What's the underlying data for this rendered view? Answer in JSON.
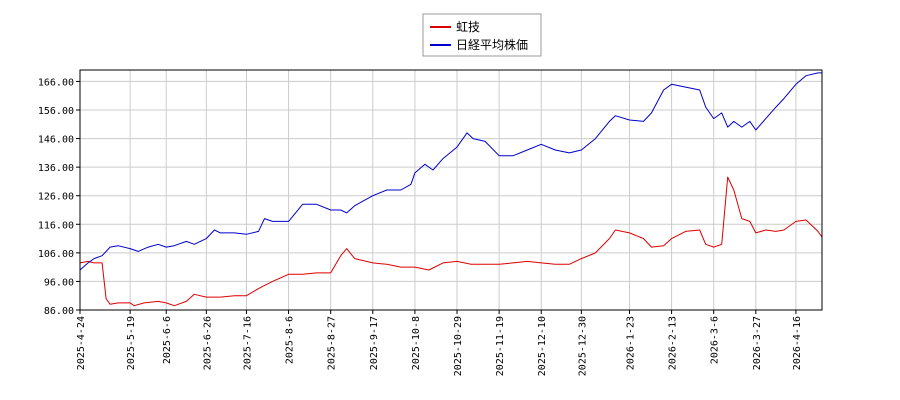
{
  "chart_data": {
    "type": "line",
    "title": "",
    "xlabel": "",
    "ylabel": "",
    "ylim": [
      86,
      170
    ],
    "yticks": [
      86,
      96,
      106,
      116,
      126,
      136,
      146,
      156,
      166
    ],
    "ytick_labels": [
      "86.00",
      "96.00",
      "106.00",
      "116.00",
      "126.00",
      "136.00",
      "146.00",
      "156.00",
      "166.00"
    ],
    "grid": true,
    "legend_position": "top-center",
    "x_range": [
      "2025-04-24",
      "2026-04-29"
    ],
    "xticks": [
      "2025-4-24",
      "2025-5-19",
      "2025-6-6",
      "2025-6-26",
      "2025-7-16",
      "2025-8-6",
      "2025-8-27",
      "2025-9-17",
      "2025-10-8",
      "2025-10-29",
      "2025-11-19",
      "2025-12-10",
      "2025-12-30",
      "2026-1-23",
      "2026-2-13",
      "2026-3-6",
      "2026-3-27",
      "2026-4-16"
    ],
    "series": [
      {
        "name": "虹技",
        "color": "#dd0000",
        "points": [
          [
            "2025-04-24",
            102.5
          ],
          [
            "2025-04-28",
            103
          ],
          [
            "2025-05-01",
            102.5
          ],
          [
            "2025-05-05",
            102.5
          ],
          [
            "2025-05-07",
            90
          ],
          [
            "2025-05-09",
            88
          ],
          [
            "2025-05-13",
            88.5
          ],
          [
            "2025-05-19",
            88.5
          ],
          [
            "2025-05-21",
            87.5
          ],
          [
            "2025-05-26",
            88.5
          ],
          [
            "2025-06-02",
            89
          ],
          [
            "2025-06-06",
            88.5
          ],
          [
            "2025-06-10",
            87.5
          ],
          [
            "2025-06-16",
            89
          ],
          [
            "2025-06-20",
            91.5
          ],
          [
            "2025-06-26",
            90.5
          ],
          [
            "2025-07-03",
            90.5
          ],
          [
            "2025-07-10",
            91
          ],
          [
            "2025-07-16",
            91
          ],
          [
            "2025-07-22",
            93.5
          ],
          [
            "2025-07-29",
            96
          ],
          [
            "2025-08-06",
            98.5
          ],
          [
            "2025-08-13",
            98.5
          ],
          [
            "2025-08-20",
            99
          ],
          [
            "2025-08-27",
            99
          ],
          [
            "2025-09-01",
            105
          ],
          [
            "2025-09-04",
            107.5
          ],
          [
            "2025-09-08",
            104
          ],
          [
            "2025-09-17",
            102.5
          ],
          [
            "2025-09-24",
            102
          ],
          [
            "2025-10-01",
            101
          ],
          [
            "2025-10-08",
            101
          ],
          [
            "2025-10-15",
            100
          ],
          [
            "2025-10-22",
            102.5
          ],
          [
            "2025-10-29",
            103
          ],
          [
            "2025-11-05",
            102
          ],
          [
            "2025-11-12",
            102
          ],
          [
            "2025-11-19",
            102
          ],
          [
            "2025-11-26",
            102.5
          ],
          [
            "2025-12-03",
            103
          ],
          [
            "2025-12-10",
            102.5
          ],
          [
            "2025-12-17",
            102
          ],
          [
            "2025-12-24",
            102
          ],
          [
            "2025-12-30",
            104
          ],
          [
            "2026-01-06",
            106
          ],
          [
            "2026-01-13",
            111
          ],
          [
            "2026-01-16",
            114
          ],
          [
            "2026-01-23",
            113
          ],
          [
            "2026-01-30",
            111
          ],
          [
            "2026-02-03",
            108
          ],
          [
            "2026-02-09",
            108.5
          ],
          [
            "2026-02-13",
            111
          ],
          [
            "2026-02-20",
            113.5
          ],
          [
            "2026-02-27",
            114
          ],
          [
            "2026-03-02",
            109
          ],
          [
            "2026-03-06",
            108
          ],
          [
            "2026-03-10",
            109
          ],
          [
            "2026-03-13",
            132.5
          ],
          [
            "2026-03-16",
            128
          ],
          [
            "2026-03-20",
            118
          ],
          [
            "2026-03-24",
            117
          ],
          [
            "2026-03-27",
            113
          ],
          [
            "2026-04-01",
            114
          ],
          [
            "2026-04-06",
            113.5
          ],
          [
            "2026-04-10",
            114
          ],
          [
            "2026-04-16",
            117
          ],
          [
            "2026-04-21",
            117.5
          ],
          [
            "2026-04-27",
            113.5
          ],
          [
            "2026-04-29",
            111.5
          ]
        ]
      },
      {
        "name": "日経平均株価",
        "color": "#0000cc",
        "points": [
          [
            "2025-04-24",
            100
          ],
          [
            "2025-04-28",
            102.5
          ],
          [
            "2025-05-01",
            104
          ],
          [
            "2025-05-05",
            105
          ],
          [
            "2025-05-09",
            108
          ],
          [
            "2025-05-13",
            108.5
          ],
          [
            "2025-05-19",
            107.5
          ],
          [
            "2025-05-23",
            106.5
          ],
          [
            "2025-05-28",
            108
          ],
          [
            "2025-06-02",
            109
          ],
          [
            "2025-06-06",
            108
          ],
          [
            "2025-06-10",
            108.5
          ],
          [
            "2025-06-16",
            110
          ],
          [
            "2025-06-20",
            109
          ],
          [
            "2025-06-26",
            111
          ],
          [
            "2025-06-30",
            114
          ],
          [
            "2025-07-03",
            113
          ],
          [
            "2025-07-10",
            113
          ],
          [
            "2025-07-16",
            112.5
          ],
          [
            "2025-07-22",
            113.5
          ],
          [
            "2025-07-25",
            118
          ],
          [
            "2025-07-29",
            117
          ],
          [
            "2025-08-06",
            117
          ],
          [
            "2025-08-13",
            123
          ],
          [
            "2025-08-20",
            123
          ],
          [
            "2025-08-27",
            121
          ],
          [
            "2025-09-01",
            121
          ],
          [
            "2025-09-04",
            120
          ],
          [
            "2025-09-08",
            122.5
          ],
          [
            "2025-09-17",
            126
          ],
          [
            "2025-09-24",
            128
          ],
          [
            "2025-10-01",
            128
          ],
          [
            "2025-10-06",
            130
          ],
          [
            "2025-10-08",
            134
          ],
          [
            "2025-10-13",
            137
          ],
          [
            "2025-10-17",
            135
          ],
          [
            "2025-10-22",
            139
          ],
          [
            "2025-10-29",
            143
          ],
          [
            "2025-11-03",
            148
          ],
          [
            "2025-11-06",
            146
          ],
          [
            "2025-11-12",
            145
          ],
          [
            "2025-11-19",
            140
          ],
          [
            "2025-11-26",
            140
          ],
          [
            "2025-12-03",
            142
          ],
          [
            "2025-12-10",
            144
          ],
          [
            "2025-12-17",
            142
          ],
          [
            "2025-12-24",
            141
          ],
          [
            "2025-12-30",
            142
          ],
          [
            "2026-01-06",
            146
          ],
          [
            "2026-01-13",
            152
          ],
          [
            "2026-01-16",
            154
          ],
          [
            "2026-01-23",
            152.5
          ],
          [
            "2026-01-30",
            152
          ],
          [
            "2026-02-03",
            155
          ],
          [
            "2026-02-09",
            163
          ],
          [
            "2026-02-13",
            165
          ],
          [
            "2026-02-20",
            164
          ],
          [
            "2026-02-27",
            163
          ],
          [
            "2026-03-02",
            157
          ],
          [
            "2026-03-06",
            153
          ],
          [
            "2026-03-10",
            155
          ],
          [
            "2026-03-13",
            150
          ],
          [
            "2026-03-16",
            152
          ],
          [
            "2026-03-20",
            150
          ],
          [
            "2026-03-24",
            152
          ],
          [
            "2026-03-27",
            149
          ],
          [
            "2026-04-01",
            153
          ],
          [
            "2026-04-06",
            157
          ],
          [
            "2026-04-10",
            160
          ],
          [
            "2026-04-16",
            165
          ],
          [
            "2026-04-21",
            168
          ],
          [
            "2026-04-27",
            169
          ],
          [
            "2026-04-29",
            169
          ]
        ]
      }
    ]
  }
}
